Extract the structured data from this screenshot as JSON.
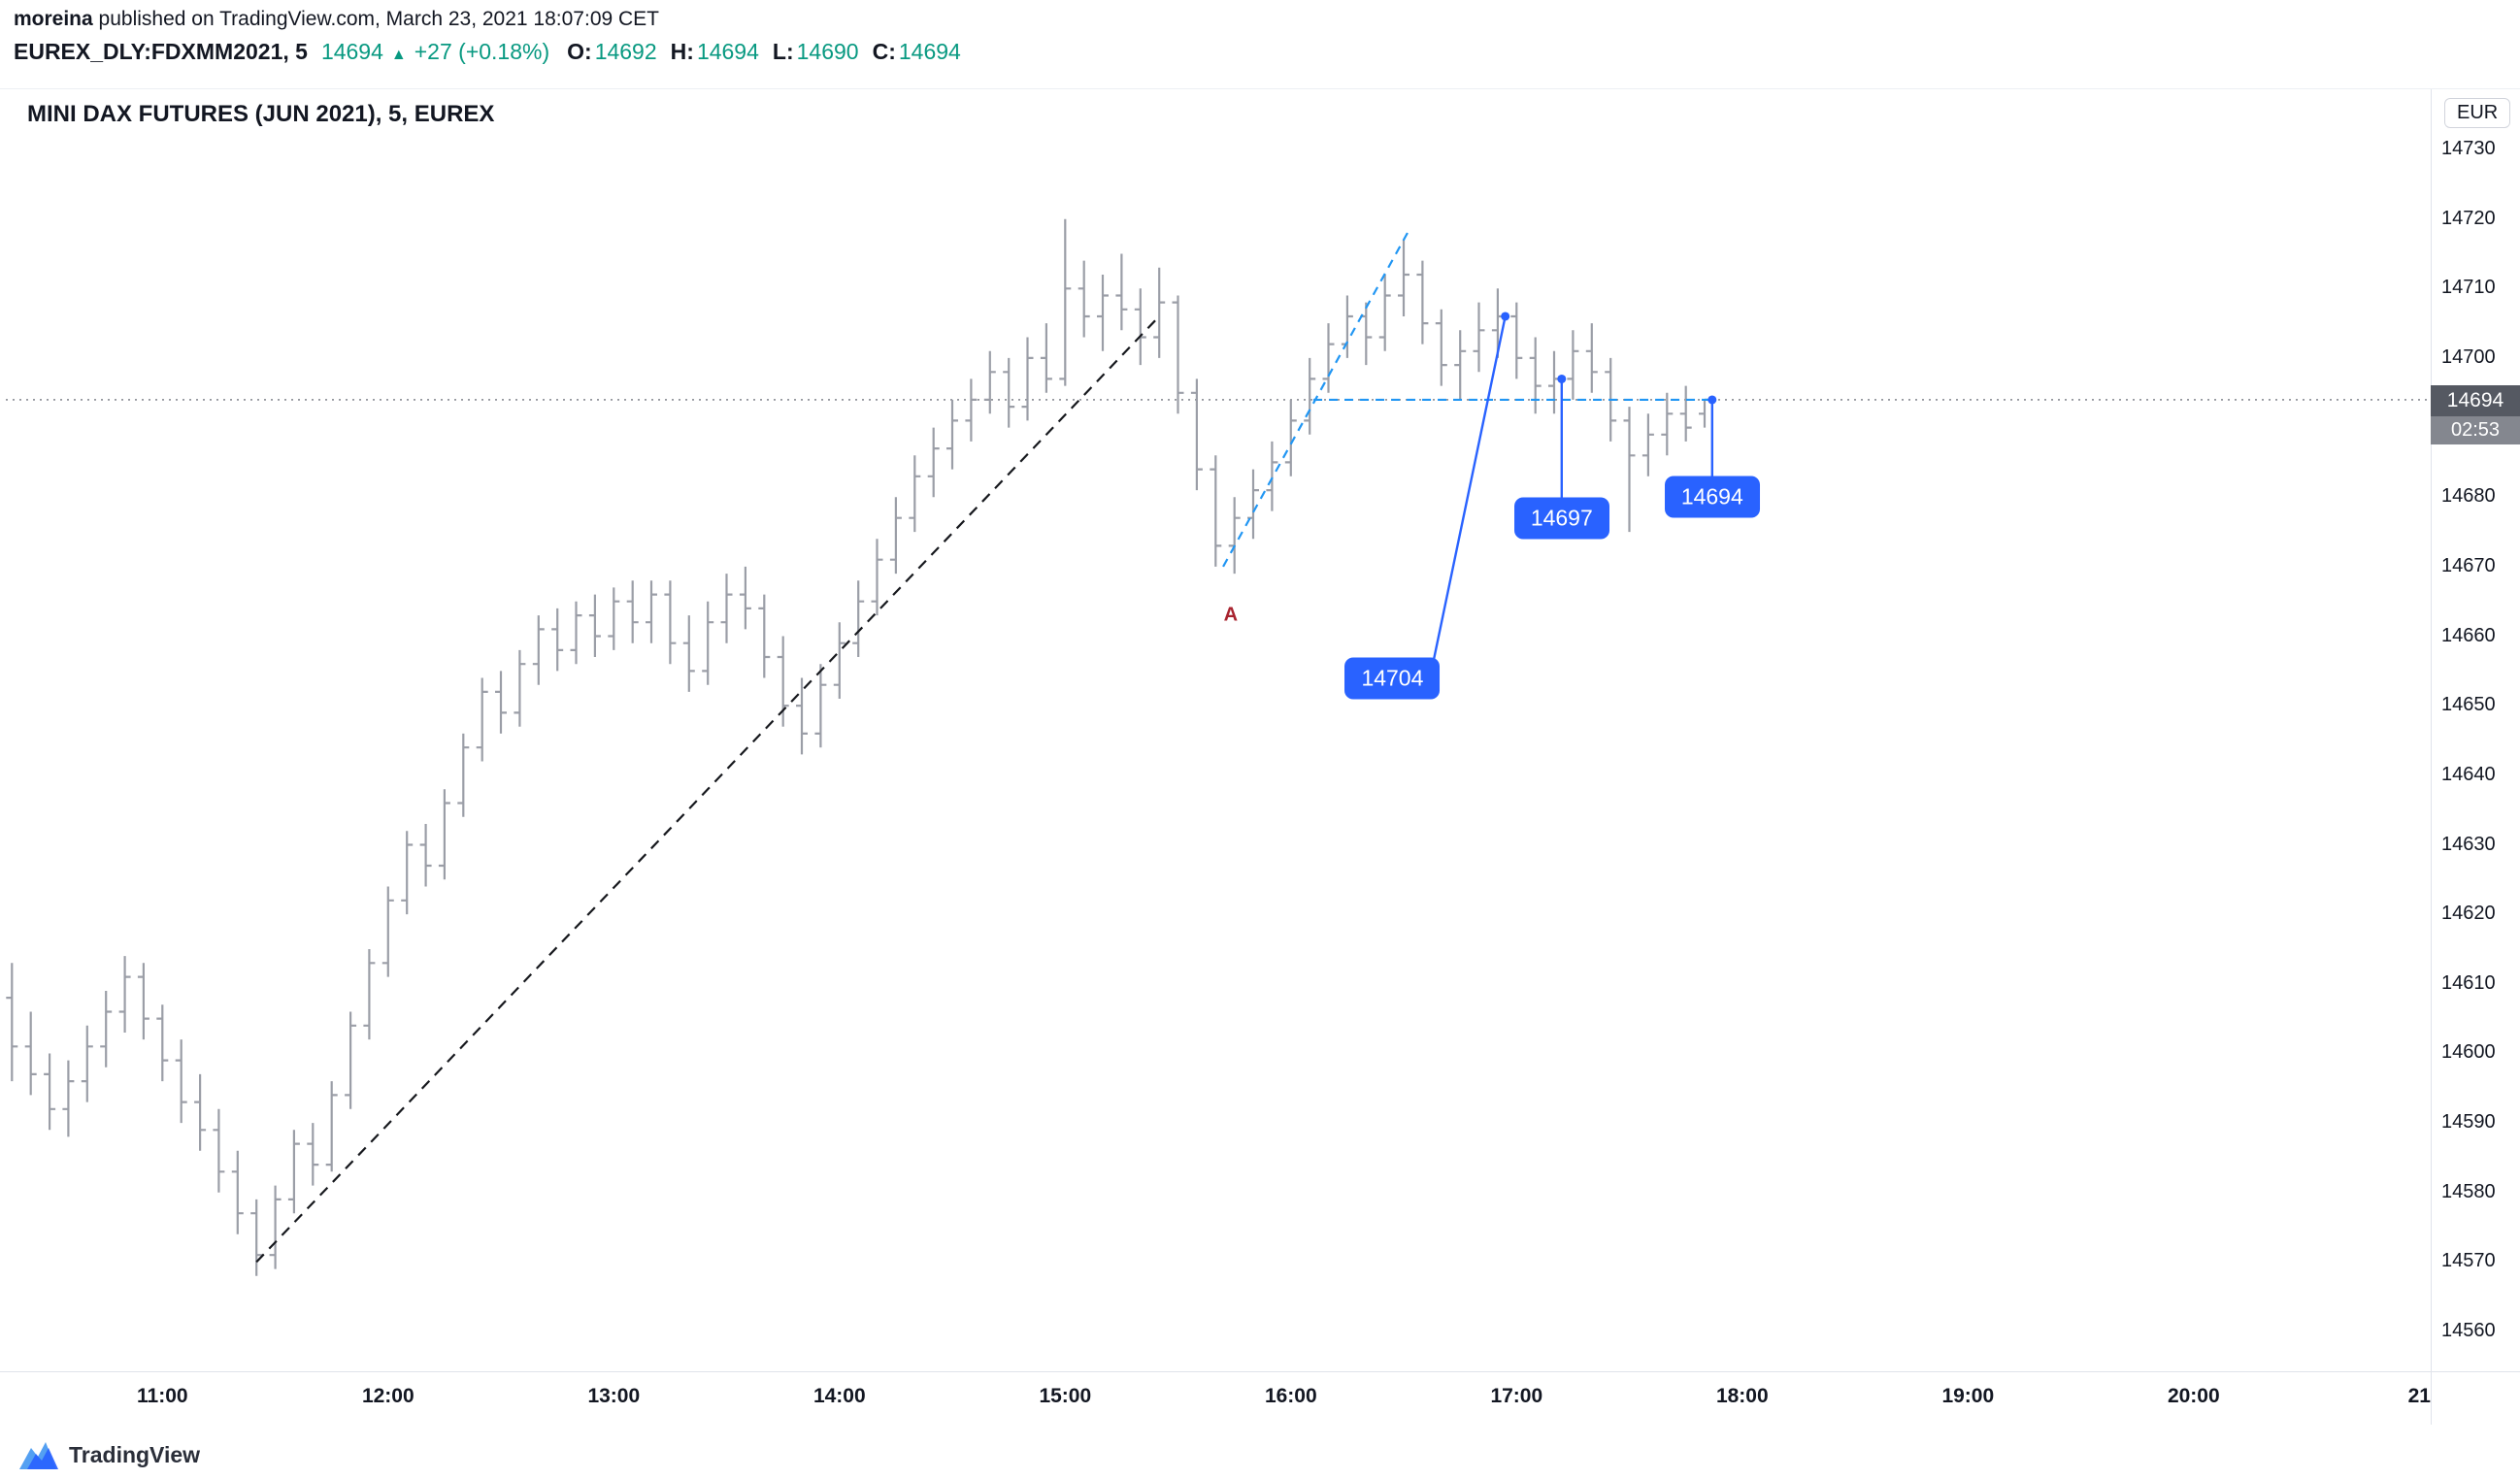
{
  "header": {
    "author": "moreina",
    "published": " published on TradingView.com, March 23, 2021 18:07:09 CET",
    "symbol": "EUREX_DLY:FDXMM2021, 5",
    "last": "14694",
    "arrow": "▲",
    "change": "+27 (+0.18%)",
    "o_label": "O:",
    "o_value": "14692",
    "h_label": "H:",
    "h_value": "14694",
    "l_label": "L:",
    "l_value": "14690",
    "c_label": "C:",
    "c_value": "14694"
  },
  "chart": {
    "title": "MINI DAX FUTURES (JUN 2021), 5, EUREX",
    "currency": "EUR",
    "price_badge": {
      "price": "14694",
      "countdown": "02:53"
    },
    "colors": {
      "bar": "#9b9ea7",
      "up_text": "#089981",
      "blue": "#2962ff",
      "blue_light": "#2196f3",
      "black_dash": "#16181d",
      "price_line": "#565a64",
      "badge_price_bg": "#555962",
      "badge_count_bg": "#84878f",
      "red": "#a8232f",
      "border": "#e0e3eb"
    }
  },
  "footer": {
    "brand": "TradingView"
  },
  "chart_data": {
    "type": "bar",
    "subtype": "ohlc-bars",
    "title": "MINI DAX FUTURES (JUN 2021), 5, EUREX",
    "symbol": "EUREX_DLY:FDXMM2021",
    "interval_minutes": 5,
    "currency": "EUR",
    "current_price": 14694,
    "ylim": [
      14554,
      14739
    ],
    "grid": false,
    "price_axis_ticks": [
      14730,
      14720,
      14710,
      14700,
      14690,
      14680,
      14670,
      14660,
      14650,
      14640,
      14630,
      14620,
      14610,
      14600,
      14590,
      14580,
      14570,
      14560
    ],
    "time_axis_ticks": [
      {
        "time": "11:00",
        "label": "11:00"
      },
      {
        "time": "12:00",
        "label": "12:00"
      },
      {
        "time": "13:00",
        "label": "13:00"
      },
      {
        "time": "14:00",
        "label": "14:00"
      },
      {
        "time": "15:00",
        "label": "15:00"
      },
      {
        "time": "16:00",
        "label": "16:00"
      },
      {
        "time": "17:00",
        "label": "17:00"
      },
      {
        "time": "18:00",
        "label": "18:00"
      },
      {
        "time": "19:00",
        "label": "19:00"
      },
      {
        "time": "20:00",
        "label": "20:00"
      },
      {
        "time": "21:00",
        "label": "21"
      }
    ],
    "bars": [
      [
        "10:20",
        14608,
        14613,
        14596,
        14601
      ],
      [
        "10:25",
        14601,
        14606,
        14594,
        14597
      ],
      [
        "10:30",
        14597,
        14600,
        14589,
        14592
      ],
      [
        "10:35",
        14592,
        14599,
        14588,
        14596
      ],
      [
        "10:40",
        14596,
        14604,
        14593,
        14601
      ],
      [
        "10:45",
        14601,
        14609,
        14598,
        14606
      ],
      [
        "10:50",
        14606,
        14614,
        14603,
        14611
      ],
      [
        "10:55",
        14611,
        14613,
        14602,
        14605
      ],
      [
        "11:00",
        14605,
        14607,
        14596,
        14599
      ],
      [
        "11:05",
        14599,
        14602,
        14590,
        14593
      ],
      [
        "11:10",
        14593,
        14597,
        14586,
        14589
      ],
      [
        "11:15",
        14589,
        14592,
        14580,
        14583
      ],
      [
        "11:20",
        14583,
        14586,
        14574,
        14577
      ],
      [
        "11:25",
        14577,
        14579,
        14568,
        14571
      ],
      [
        "11:30",
        14571,
        14581,
        14569,
        14579
      ],
      [
        "11:35",
        14579,
        14589,
        14577,
        14587
      ],
      [
        "11:40",
        14587,
        14590,
        14581,
        14584
      ],
      [
        "11:45",
        14584,
        14596,
        14583,
        14594
      ],
      [
        "11:50",
        14594,
        14606,
        14592,
        14604
      ],
      [
        "11:55",
        14604,
        14615,
        14602,
        14613
      ],
      [
        "12:00",
        14613,
        14624,
        14611,
        14622
      ],
      [
        "12:05",
        14622,
        14632,
        14620,
        14630
      ],
      [
        "12:10",
        14630,
        14633,
        14624,
        14627
      ],
      [
        "12:15",
        14627,
        14638,
        14625,
        14636
      ],
      [
        "12:20",
        14636,
        14646,
        14634,
        14644
      ],
      [
        "12:25",
        14644,
        14654,
        14642,
        14652
      ],
      [
        "12:30",
        14652,
        14655,
        14646,
        14649
      ],
      [
        "12:35",
        14649,
        14658,
        14647,
        14656
      ],
      [
        "12:40",
        14656,
        14663,
        14653,
        14661
      ],
      [
        "12:45",
        14661,
        14664,
        14655,
        14658
      ],
      [
        "12:50",
        14658,
        14665,
        14656,
        14663
      ],
      [
        "12:55",
        14663,
        14666,
        14657,
        14660
      ],
      [
        "13:00",
        14660,
        14667,
        14658,
        14665
      ],
      [
        "13:05",
        14665,
        14668,
        14659,
        14662
      ],
      [
        "13:10",
        14662,
        14668,
        14659,
        14666
      ],
      [
        "13:15",
        14666,
        14668,
        14656,
        14659
      ],
      [
        "13:20",
        14659,
        14663,
        14652,
        14655
      ],
      [
        "13:25",
        14655,
        14665,
        14653,
        14662
      ],
      [
        "13:30",
        14662,
        14669,
        14659,
        14666
      ],
      [
        "13:35",
        14666,
        14670,
        14661,
        14664
      ],
      [
        "13:40",
        14664,
        14666,
        14654,
        14657
      ],
      [
        "13:45",
        14657,
        14660,
        14647,
        14650
      ],
      [
        "13:50",
        14650,
        14654,
        14643,
        14646
      ],
      [
        "13:55",
        14646,
        14656,
        14644,
        14653
      ],
      [
        "14:00",
        14653,
        14662,
        14651,
        14659
      ],
      [
        "14:05",
        14659,
        14668,
        14657,
        14665
      ],
      [
        "14:10",
        14665,
        14674,
        14663,
        14671
      ],
      [
        "14:15",
        14671,
        14680,
        14669,
        14677
      ],
      [
        "14:20",
        14677,
        14686,
        14675,
        14683
      ],
      [
        "14:25",
        14683,
        14690,
        14680,
        14687
      ],
      [
        "14:30",
        14687,
        14694,
        14684,
        14691
      ],
      [
        "14:35",
        14691,
        14697,
        14688,
        14694
      ],
      [
        "14:40",
        14694,
        14701,
        14692,
        14698
      ],
      [
        "14:45",
        14698,
        14700,
        14690,
        14693
      ],
      [
        "14:50",
        14693,
        14703,
        14691,
        14700
      ],
      [
        "14:55",
        14700,
        14705,
        14695,
        14697
      ],
      [
        "15:00",
        14697,
        14720,
        14696,
        14710
      ],
      [
        "15:05",
        14710,
        14714,
        14703,
        14706
      ],
      [
        "15:10",
        14706,
        14712,
        14701,
        14709
      ],
      [
        "15:15",
        14709,
        14715,
        14704,
        14707
      ],
      [
        "15:20",
        14707,
        14710,
        14699,
        14703
      ],
      [
        "15:25",
        14703,
        14713,
        14700,
        14708
      ],
      [
        "15:30",
        14708,
        14709,
        14692,
        14695
      ],
      [
        "15:35",
        14695,
        14697,
        14681,
        14684
      ],
      [
        "15:40",
        14684,
        14686,
        14670,
        14673
      ],
      [
        "15:45",
        14673,
        14680,
        14669,
        14677
      ],
      [
        "15:50",
        14677,
        14684,
        14674,
        14681
      ],
      [
        "15:55",
        14681,
        14688,
        14678,
        14685
      ],
      [
        "16:00",
        14685,
        14694,
        14683,
        14691
      ],
      [
        "16:05",
        14691,
        14700,
        14689,
        14697
      ],
      [
        "16:10",
        14697,
        14705,
        14695,
        14702
      ],
      [
        "16:15",
        14702,
        14709,
        14700,
        14706
      ],
      [
        "16:20",
        14706,
        14708,
        14699,
        14703
      ],
      [
        "16:25",
        14703,
        14712,
        14701,
        14709
      ],
      [
        "16:30",
        14709,
        14717,
        14706,
        14712
      ],
      [
        "16:35",
        14712,
        14714,
        14702,
        14705
      ],
      [
        "16:40",
        14705,
        14707,
        14696,
        14699
      ],
      [
        "16:45",
        14699,
        14704,
        14694,
        14701
      ],
      [
        "16:50",
        14701,
        14708,
        14698,
        14704
      ],
      [
        "16:55",
        14704,
        14710,
        14700,
        14706
      ],
      [
        "17:00",
        14706,
        14708,
        14697,
        14700
      ],
      [
        "17:05",
        14700,
        14703,
        14692,
        14696
      ],
      [
        "17:10",
        14696,
        14701,
        14692,
        14697
      ],
      [
        "17:15",
        14697,
        14704,
        14694,
        14701
      ],
      [
        "17:20",
        14701,
        14705,
        14695,
        14698
      ],
      [
        "17:25",
        14698,
        14700,
        14688,
        14691
      ],
      [
        "17:30",
        14691,
        14693,
        14675,
        14686
      ],
      [
        "17:35",
        14686,
        14692,
        14683,
        14689
      ],
      [
        "17:40",
        14689,
        14695,
        14686,
        14692
      ],
      [
        "17:45",
        14692,
        14696,
        14688,
        14690
      ],
      [
        "17:50",
        14692,
        14694,
        14690,
        14694
      ]
    ],
    "annotations": {
      "black_trendline": {
        "style": "dashed",
        "from": [
          "11:25",
          14570
        ],
        "to": [
          "15:25",
          14706
        ]
      },
      "blue_diagonal": {
        "style": "dashed",
        "from": [
          "15:42",
          14670
        ],
        "to": [
          "16:31",
          14718
        ]
      },
      "blue_hline": {
        "style": "dashed",
        "price": 14694,
        "from": "16:06",
        "to": "17:52"
      },
      "callouts": [
        {
          "label": "14704",
          "anchor": [
            "16:57",
            14706
          ],
          "label_at": [
            "16:27",
            14654
          ],
          "line_from": "top-right"
        },
        {
          "label": "14697",
          "anchor": [
            "17:12",
            14697
          ],
          "label_at": [
            "17:12",
            14677
          ],
          "line_from": "top-center"
        },
        {
          "label": "14694",
          "anchor": [
            "17:52",
            14694
          ],
          "label_at": [
            "17:52",
            14680
          ],
          "line_from": "top-center"
        }
      ],
      "letters": [
        {
          "text": "A",
          "at": [
            "15:44",
            14663
          ]
        }
      ]
    }
  }
}
